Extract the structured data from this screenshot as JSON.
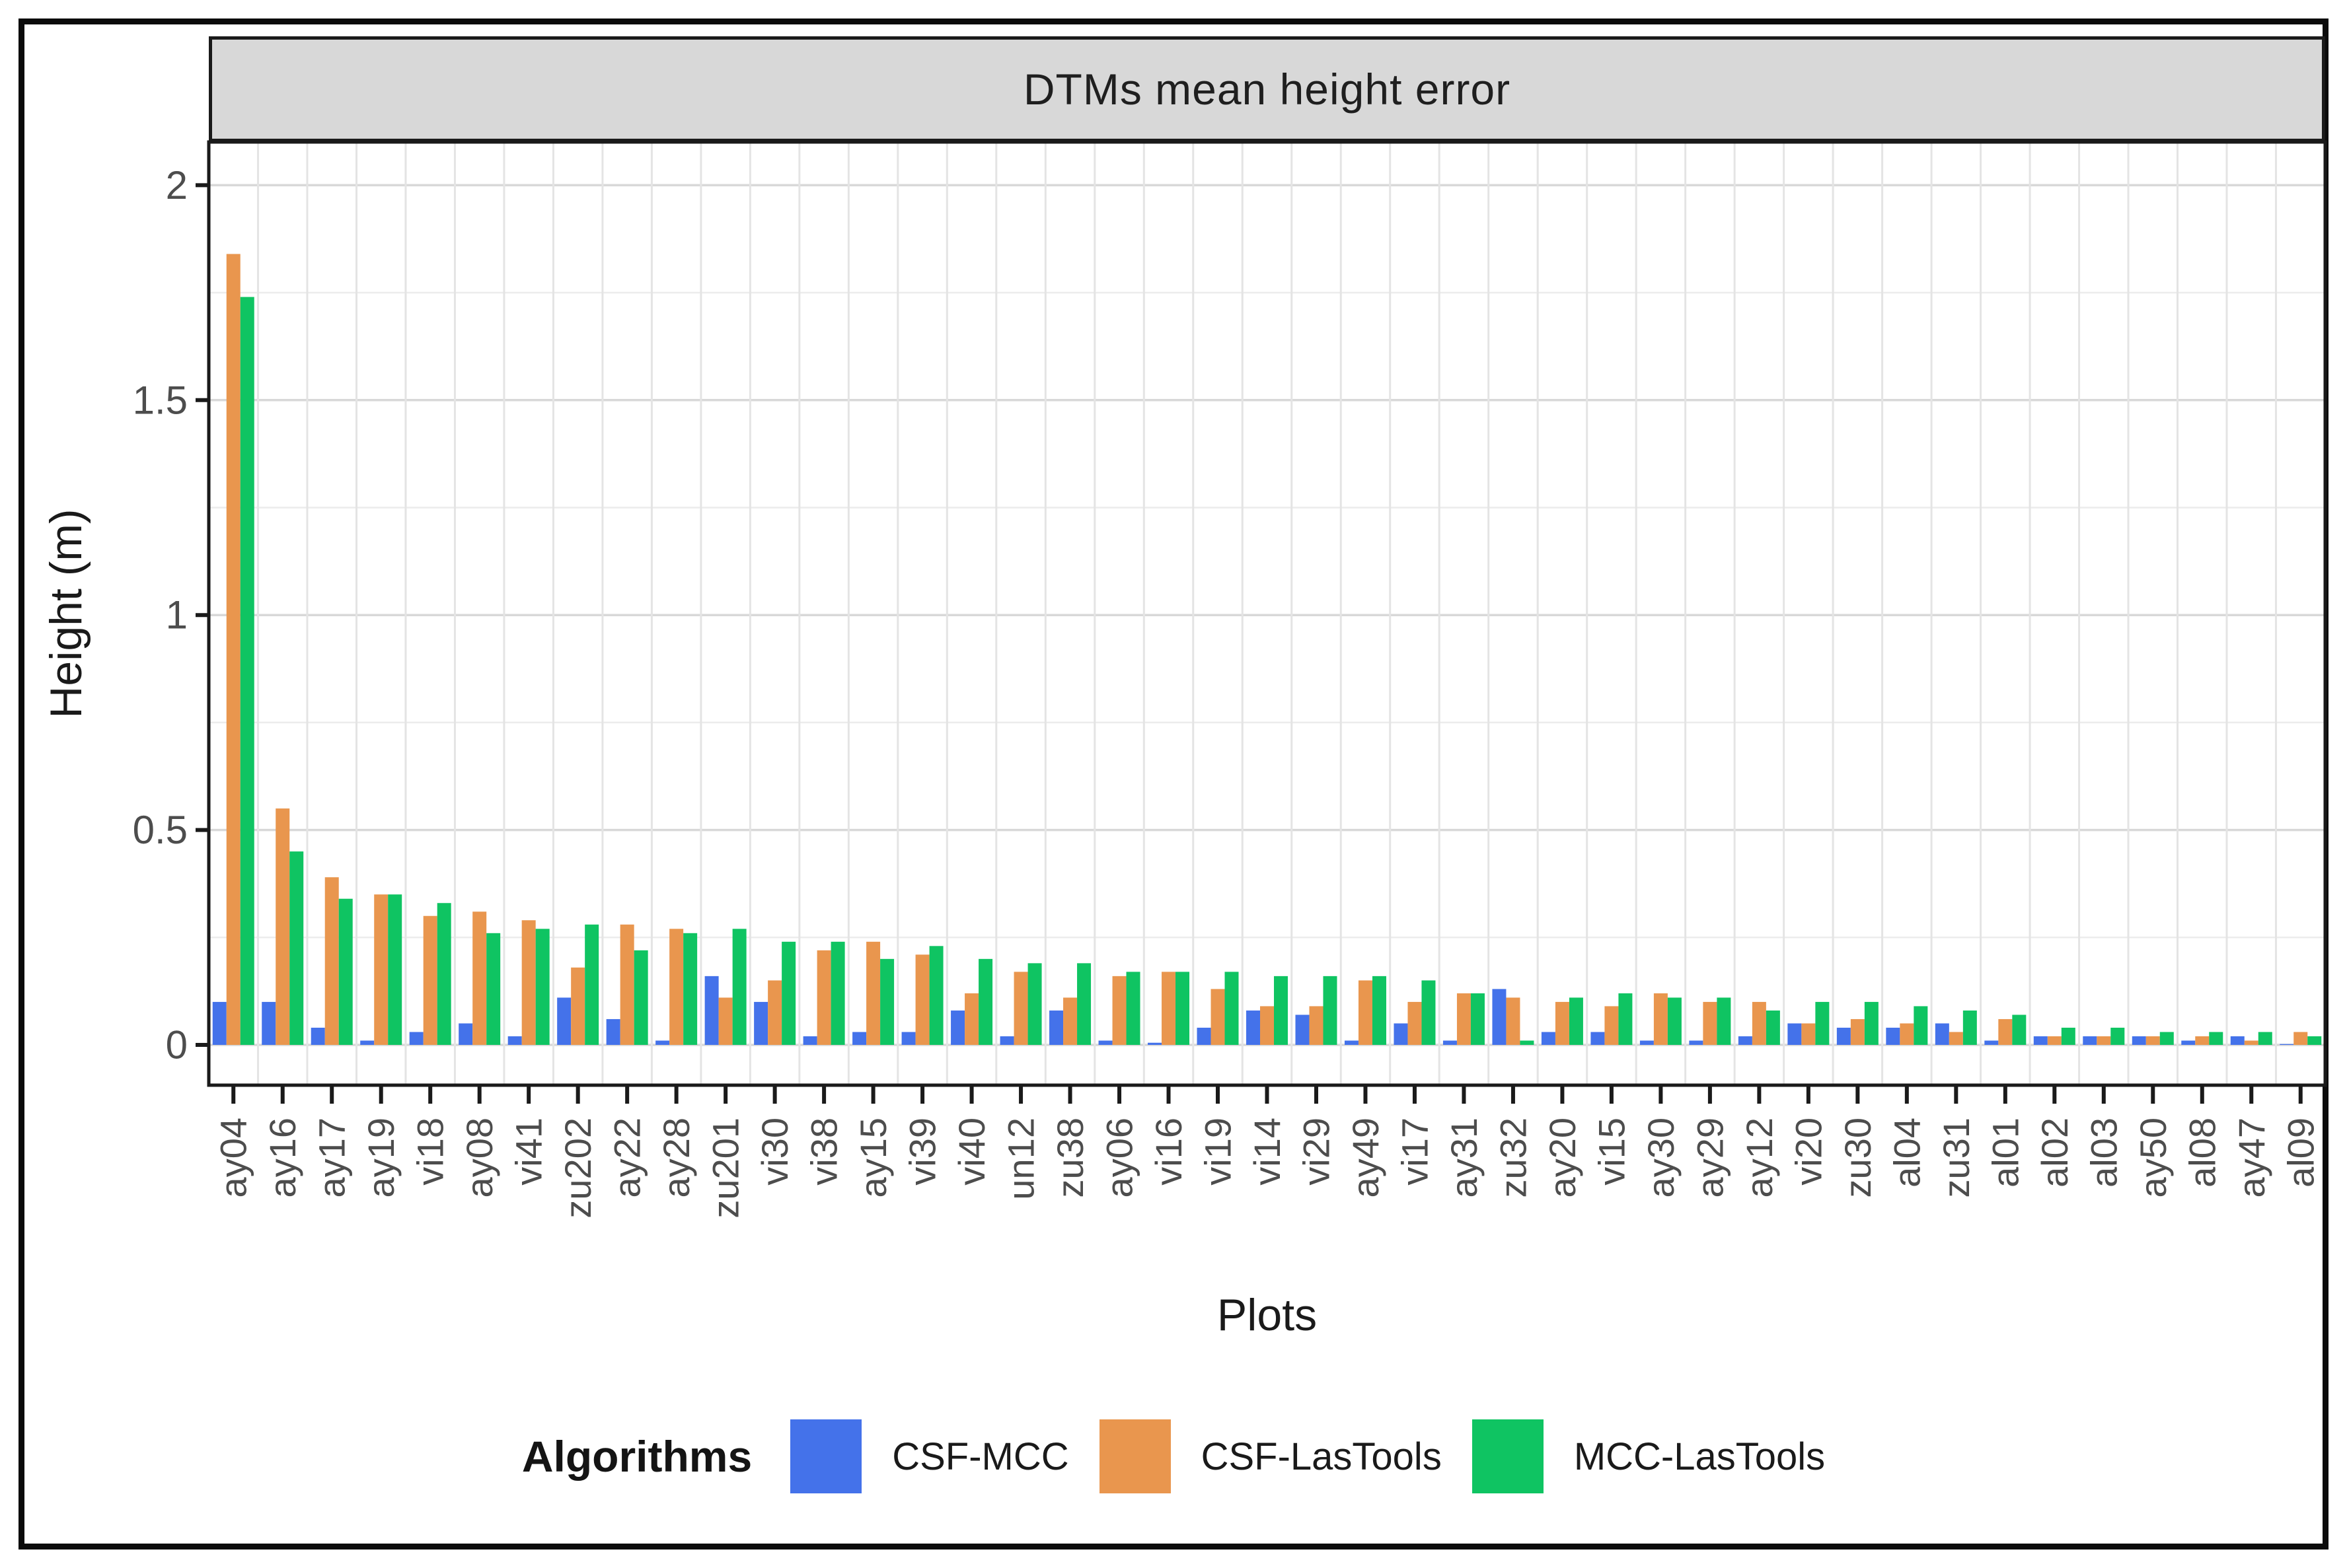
{
  "title": "DTMs mean height error",
  "axes": {
    "y_label": "Height (m)",
    "x_label": "Plots",
    "y_ticks": [
      "2",
      "1.5",
      "1",
      "0.5",
      "0"
    ]
  },
  "legend": {
    "title": "Algorithms",
    "items": [
      {
        "label": "CSF-MCC",
        "color": "#4472EA"
      },
      {
        "label": "CSF-LasTools",
        "color": "#E9964E"
      },
      {
        "label": "MCC-LasTools",
        "color": "#0FC462"
      }
    ]
  },
  "colors": {
    "strip_background": "#d8d8d8",
    "panel_border": "#1a1a1a",
    "figure_border": "#0b0b0b",
    "gridline_major": "#d8d8d8",
    "gridline_minor": "#ececec",
    "gridline_vertical": "#e4e4e4",
    "tick_label": "#4d4d4d",
    "tick_mark": "#1a1a1a"
  },
  "chart_data": {
    "type": "bar",
    "title": "DTMs mean height error",
    "xlabel": "Plots",
    "ylabel": "Height (m)",
    "ylim": [
      0,
      2.1
    ],
    "y_major_ticks": [
      0,
      0.5,
      1,
      1.5,
      2
    ],
    "y_minor_step": 0.25,
    "grid": true,
    "legend_position": "bottom",
    "legend_title": "Algorithms",
    "categories": [
      "ay04",
      "ay16",
      "ay17",
      "ay19",
      "vi18",
      "ay08",
      "vi41",
      "zu202",
      "ay22",
      "ay28",
      "zu201",
      "vi30",
      "vi38",
      "ay15",
      "vi39",
      "vi40",
      "un12",
      "zu38",
      "ay06",
      "vi16",
      "vi19",
      "vi14",
      "vi29",
      "ay49",
      "vi17",
      "ay31",
      "zu32",
      "ay20",
      "vi15",
      "ay30",
      "ay29",
      "ay12",
      "vi20",
      "zu30",
      "al04",
      "zu31",
      "al01",
      "al02",
      "al03",
      "ay50",
      "al08",
      "ay47",
      "al09"
    ],
    "series": [
      {
        "name": "CSF-MCC",
        "color": "#4472EA",
        "values": [
          0.1,
          0.1,
          0.04,
          0.01,
          0.03,
          0.05,
          0.02,
          0.11,
          0.06,
          0.01,
          0.16,
          0.1,
          0.02,
          0.03,
          0.03,
          0.08,
          0.02,
          0.08,
          0.01,
          0.005,
          0.04,
          0.08,
          0.07,
          0.01,
          0.05,
          0.01,
          0.13,
          0.03,
          0.03,
          0.01,
          0.01,
          0.02,
          0.05,
          0.04,
          0.04,
          0.05,
          0.01,
          0.02,
          0.02,
          0.02,
          0.01,
          0.02,
          0.002
        ]
      },
      {
        "name": "CSF-LasTools",
        "color": "#E9964E",
        "values": [
          1.84,
          0.55,
          0.39,
          0.35,
          0.3,
          0.31,
          0.29,
          0.18,
          0.28,
          0.27,
          0.11,
          0.15,
          0.22,
          0.24,
          0.21,
          0.12,
          0.17,
          0.11,
          0.16,
          0.17,
          0.13,
          0.09,
          0.09,
          0.15,
          0.1,
          0.12,
          0.11,
          0.1,
          0.09,
          0.12,
          0.1,
          0.1,
          0.05,
          0.06,
          0.05,
          0.03,
          0.06,
          0.02,
          0.02,
          0.02,
          0.02,
          0.01,
          0.03
        ]
      },
      {
        "name": "MCC-LasTools",
        "color": "#0FC462",
        "values": [
          1.74,
          0.45,
          0.34,
          0.35,
          0.33,
          0.26,
          0.27,
          0.28,
          0.22,
          0.26,
          0.27,
          0.24,
          0.24,
          0.2,
          0.23,
          0.2,
          0.19,
          0.19,
          0.17,
          0.17,
          0.17,
          0.16,
          0.16,
          0.16,
          0.15,
          0.12,
          0.01,
          0.11,
          0.12,
          0.11,
          0.11,
          0.08,
          0.1,
          0.1,
          0.09,
          0.08,
          0.07,
          0.04,
          0.04,
          0.03,
          0.03,
          0.03,
          0.02
        ]
      }
    ]
  }
}
